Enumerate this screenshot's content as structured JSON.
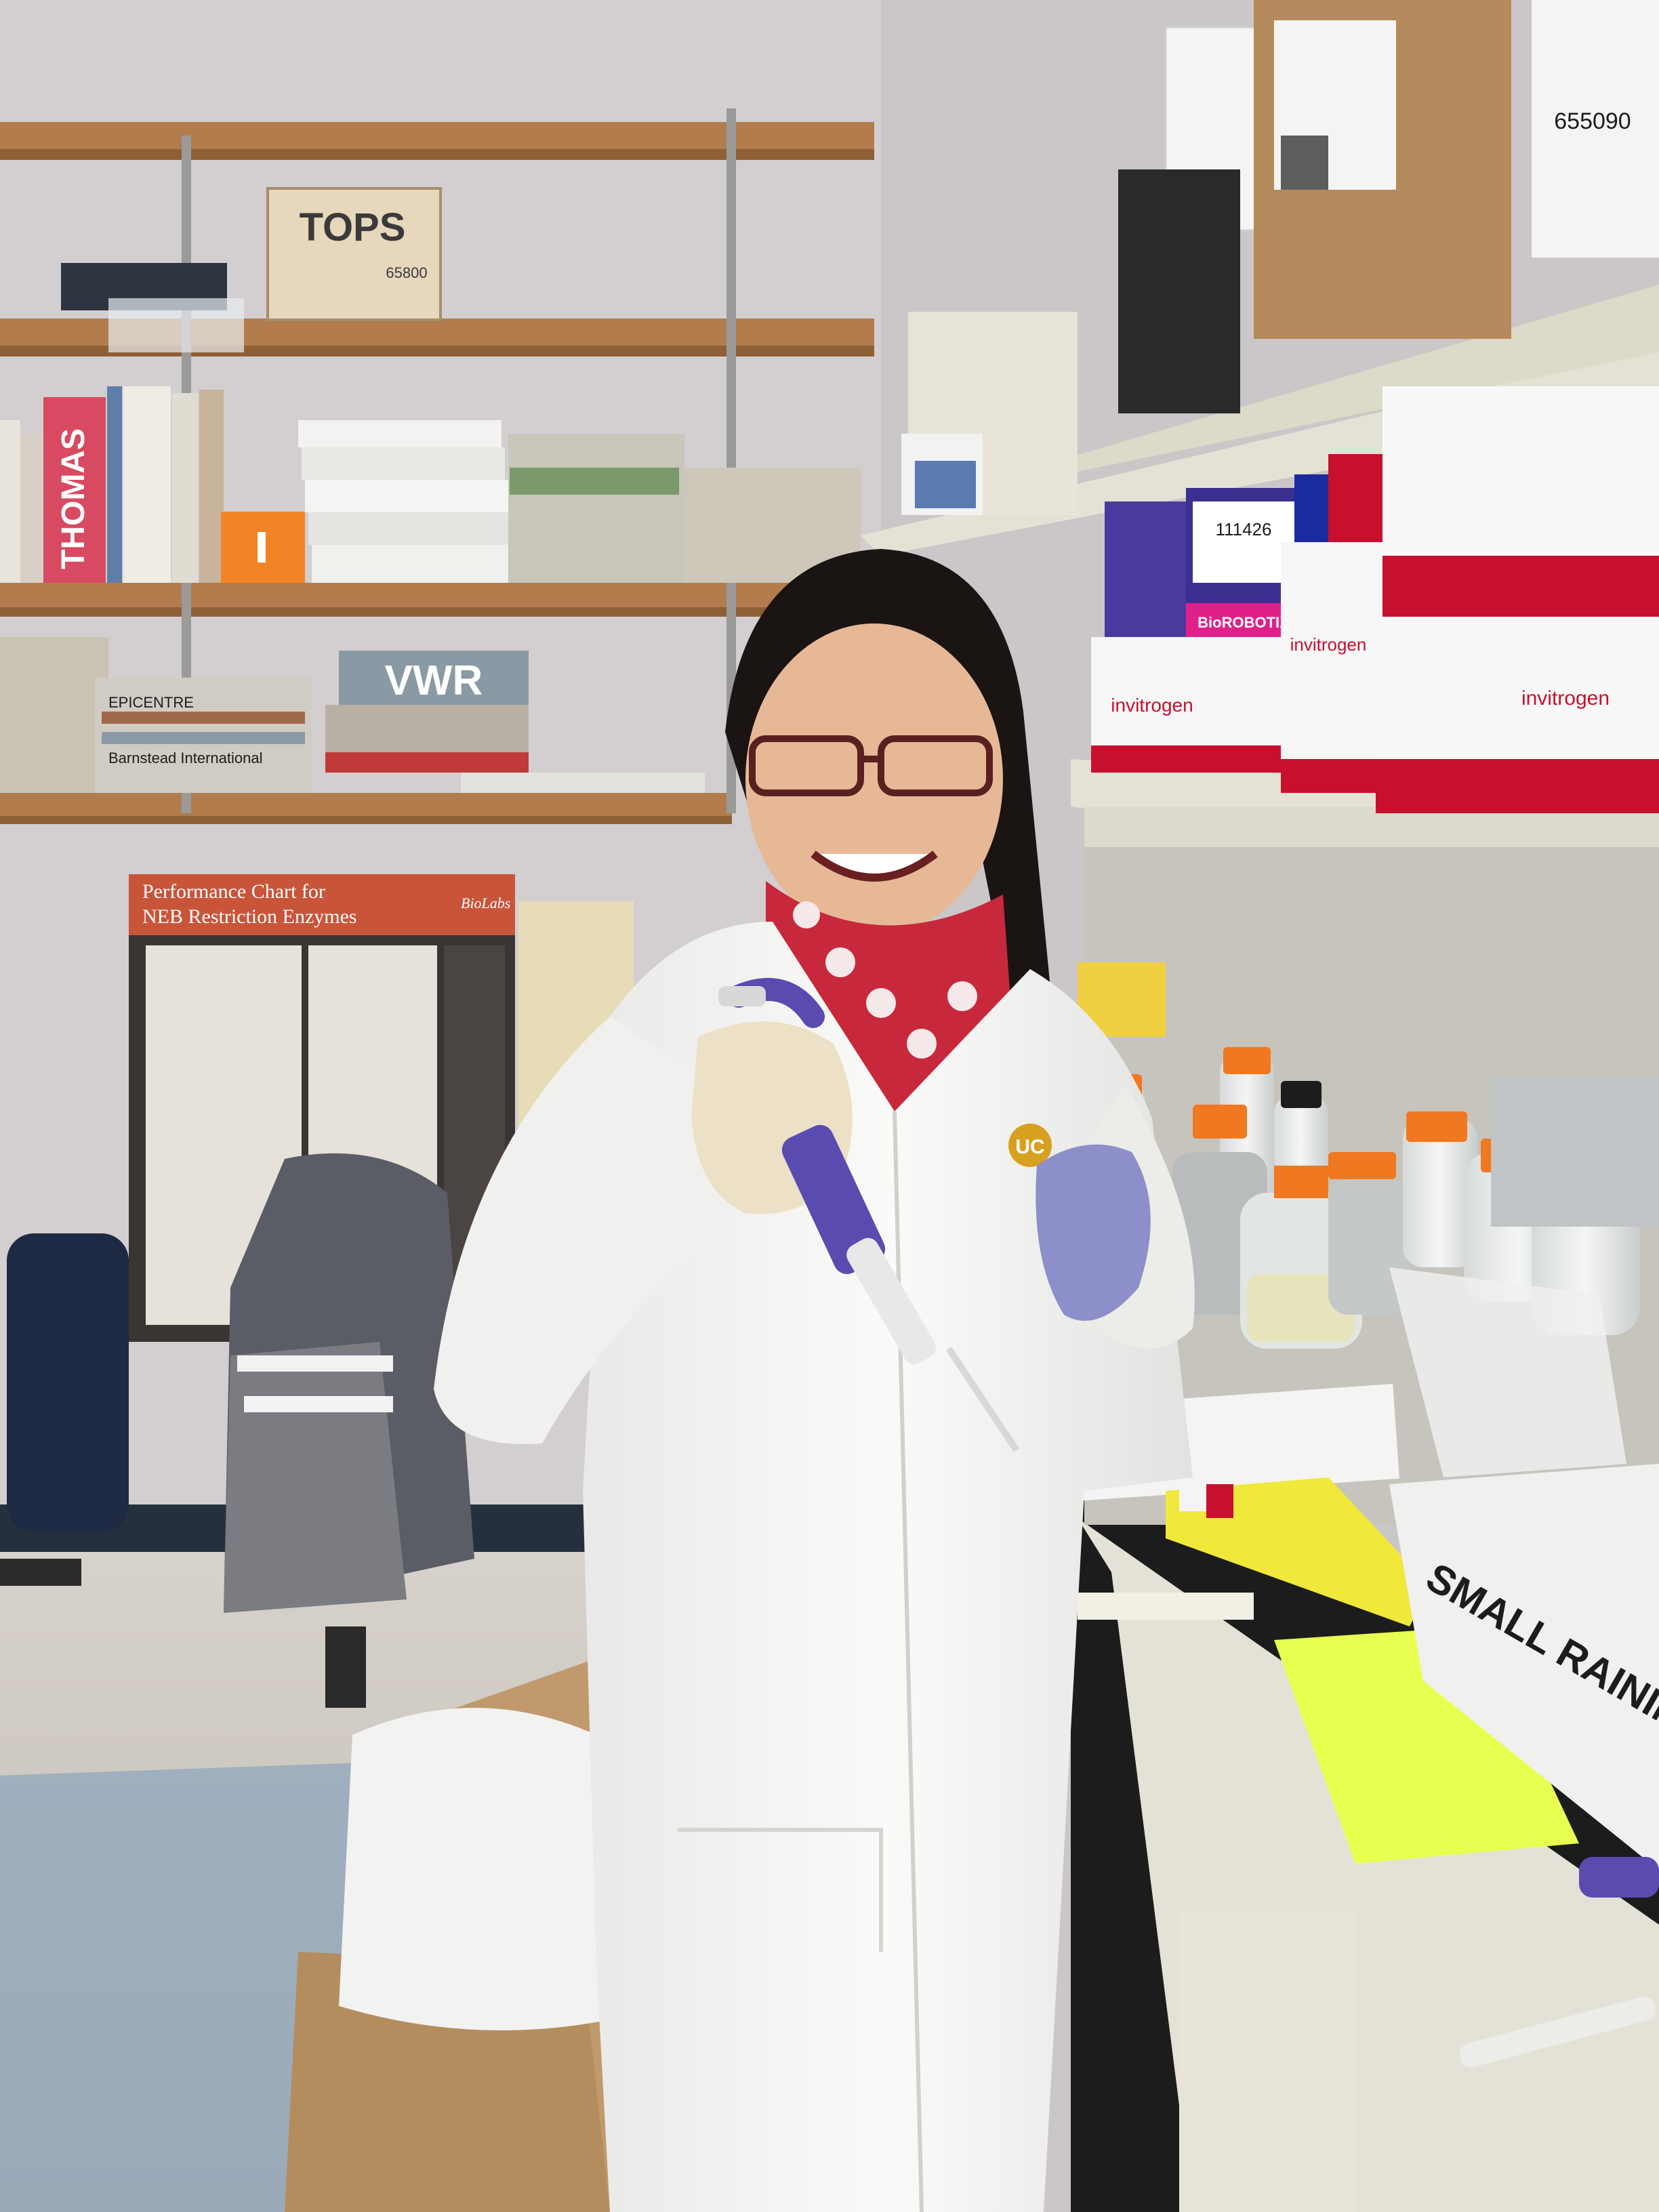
{
  "scene": {
    "box_brand": "TOPS",
    "box_code": "65800",
    "book_spine_thomas": "THOMAS",
    "book_spine_vwr": "VWR",
    "catalog_barnstead": "Barnstead International",
    "catalog_epicentre": "EPICENTRE",
    "poster_title_line1": "Performance Chart for",
    "poster_title_line2": "NEB Restriction Enzymes",
    "poster_logo": "BioLabs",
    "box_label_655090": "655090",
    "box_label_111426": "111426",
    "box_brand_invitrogen": "invitrogen",
    "box_brand_biorobotix": "BioROBOTIX",
    "bin_label": "SMALL RAININ",
    "coat_logo": "UC"
  },
  "colors": {
    "wall": "#c9c4c6",
    "shelf_wood": "#b07a4a",
    "lab_coat": "#f2f2f0",
    "glove_purple": "#8c8fc9",
    "pipette_purple": "#5a4bb0",
    "scarf_red": "#c8283c",
    "tube_rack_yellow": "#f0e83a",
    "bottle_cap_orange": "#f07820",
    "bench_top": "#1c1c1c",
    "invitrogen_red": "#c8102e"
  }
}
